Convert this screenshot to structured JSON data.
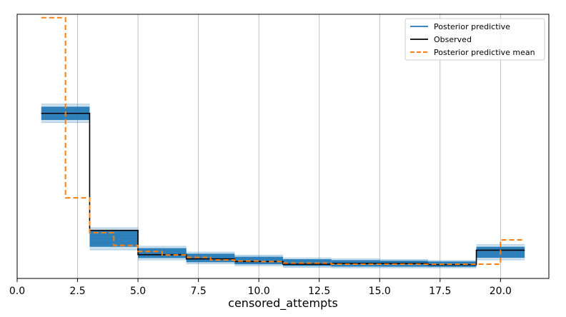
{
  "chart_data": {
    "type": "line",
    "title": "",
    "xlabel": "censored_attempts",
    "ylabel": "",
    "xlim": [
      0.0,
      22.0
    ],
    "ylim": [
      0.0,
      1.0
    ],
    "x_ticks": [
      0.0,
      2.5,
      5.0,
      7.5,
      10.0,
      12.5,
      15.0,
      17.5,
      20.0
    ],
    "x_tick_labels": [
      "0.0",
      "2.5",
      "5.0",
      "7.5",
      "10.0",
      "12.5",
      "15.0",
      "17.5",
      "20.0"
    ],
    "y_ticks_visible": false,
    "grid": "vertical",
    "legend_position": "top-right",
    "colors": {
      "posterior_predictive": "#1f77b4",
      "observed": "#000000",
      "posterior_predictive_mean": "#ff7f0e"
    },
    "series": [
      {
        "name": "Posterior predictive",
        "kind": "step-band",
        "bins": [
          {
            "x0": 1,
            "x1": 3,
            "low": 0.59,
            "high": 0.66
          },
          {
            "x0": 3,
            "x1": 5,
            "low": 0.108,
            "high": 0.192
          },
          {
            "x0": 5,
            "x1": 7,
            "low": 0.07,
            "high": 0.122
          },
          {
            "x0": 7,
            "x1": 9,
            "low": 0.055,
            "high": 0.1
          },
          {
            "x0": 9,
            "x1": 11,
            "low": 0.048,
            "high": 0.088
          },
          {
            "x0": 11,
            "x1": 13,
            "low": 0.042,
            "high": 0.078
          },
          {
            "x0": 13,
            "x1": 15,
            "low": 0.04,
            "high": 0.074
          },
          {
            "x0": 15,
            "x1": 17,
            "low": 0.04,
            "high": 0.072
          },
          {
            "x0": 17,
            "x1": 19,
            "low": 0.04,
            "high": 0.068
          },
          {
            "x0": 19,
            "x1": 21,
            "low": 0.07,
            "high": 0.128
          }
        ]
      },
      {
        "name": "Observed",
        "kind": "step",
        "bins": [
          {
            "x0": 1,
            "x1": 3,
            "y": 0.625
          },
          {
            "x0": 3,
            "x1": 5,
            "y": 0.182
          },
          {
            "x0": 5,
            "x1": 7,
            "y": 0.09
          },
          {
            "x0": 7,
            "x1": 9,
            "y": 0.074
          },
          {
            "x0": 9,
            "x1": 11,
            "y": 0.064
          },
          {
            "x0": 11,
            "x1": 13,
            "y": 0.054
          },
          {
            "x0": 13,
            "x1": 15,
            "y": 0.057
          },
          {
            "x0": 15,
            "x1": 17,
            "y": 0.057
          },
          {
            "x0": 17,
            "x1": 19,
            "y": 0.052
          },
          {
            "x0": 19,
            "x1": 21,
            "y": 0.107
          }
        ]
      },
      {
        "name": "Posterior predictive mean",
        "kind": "step-dashed",
        "bins": [
          {
            "x0": 1,
            "x1": 2,
            "y": 0.987
          },
          {
            "x0": 2,
            "x1": 3,
            "y": 0.305
          },
          {
            "x0": 3,
            "x1": 4,
            "y": 0.173
          },
          {
            "x0": 4,
            "x1": 5,
            "y": 0.125
          },
          {
            "x0": 5,
            "x1": 6,
            "y": 0.102
          },
          {
            "x0": 6,
            "x1": 7,
            "y": 0.089
          },
          {
            "x0": 7,
            "x1": 8,
            "y": 0.08
          },
          {
            "x0": 8,
            "x1": 9,
            "y": 0.07
          },
          {
            "x0": 9,
            "x1": 10,
            "y": 0.066
          },
          {
            "x0": 10,
            "x1": 11,
            "y": 0.064
          },
          {
            "x0": 11,
            "x1": 12,
            "y": 0.058
          },
          {
            "x0": 12,
            "x1": 13,
            "y": 0.058
          },
          {
            "x0": 13,
            "x1": 14,
            "y": 0.054
          },
          {
            "x0": 14,
            "x1": 15,
            "y": 0.054
          },
          {
            "x0": 15,
            "x1": 16,
            "y": 0.054
          },
          {
            "x0": 16,
            "x1": 17,
            "y": 0.054
          },
          {
            "x0": 17,
            "x1": 18,
            "y": 0.054
          },
          {
            "x0": 18,
            "x1": 19,
            "y": 0.054
          },
          {
            "x0": 19,
            "x1": 20,
            "y": 0.054
          },
          {
            "x0": 20,
            "x1": 21,
            "y": 0.146
          }
        ]
      }
    ]
  }
}
